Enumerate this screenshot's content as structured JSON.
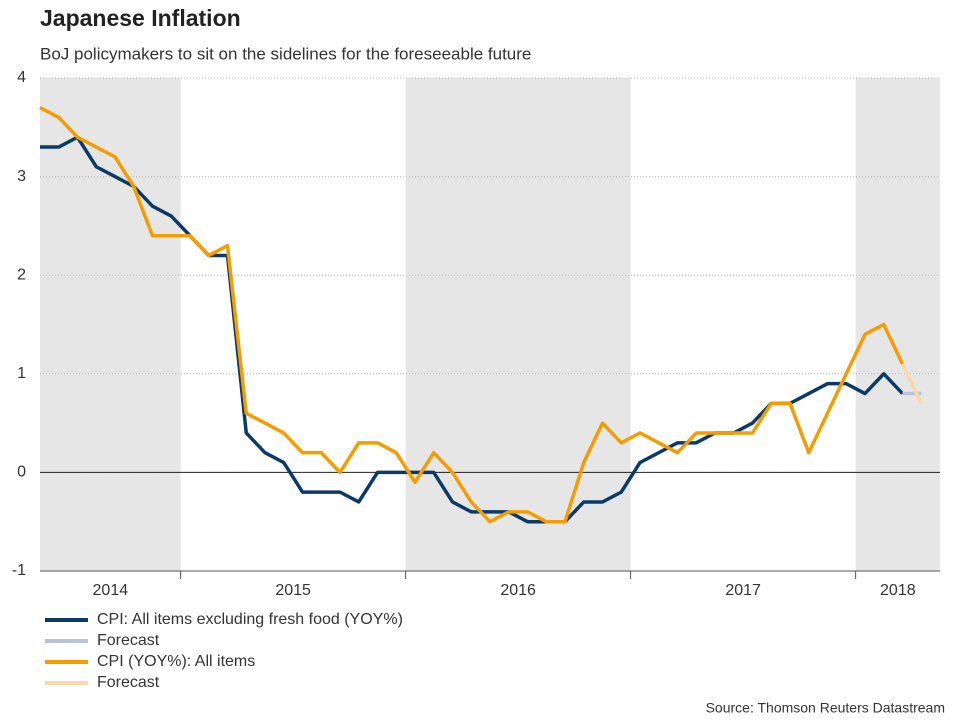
{
  "chart_data": {
    "type": "line",
    "title": "Japanese Inflation",
    "subtitle": "BoJ policymakers to sit on the sidelines for the foreseeable future",
    "source": "Source: Thomson Reuters Datastream",
    "categories": [
      "2014",
      null,
      null,
      null,
      null,
      null,
      null,
      null,
      "2015",
      null,
      null,
      null,
      null,
      null,
      null,
      null,
      null,
      null,
      null,
      null,
      "2016",
      null,
      null,
      null,
      null,
      null,
      null,
      null,
      null,
      null,
      null,
      null,
      "2017",
      null,
      null,
      null,
      null,
      null,
      null,
      null,
      null,
      null,
      null,
      null,
      "2018",
      null,
      null,
      null
    ],
    "series": [
      {
        "name": "CPI: All items excluding fresh food (YOY%)",
        "color": "#0b3a66",
        "values": [
          3.3,
          3.3,
          3.4,
          3.1,
          3.0,
          2.9,
          2.7,
          2.6,
          2.4,
          2.2,
          2.2,
          0.4,
          0.2,
          0.1,
          -0.2,
          -0.2,
          -0.2,
          -0.3,
          0.0,
          0.0,
          0.0,
          0.0,
          -0.3,
          -0.4,
          -0.4,
          -0.4,
          -0.5,
          -0.5,
          -0.5,
          -0.3,
          -0.3,
          -0.2,
          0.1,
          0.2,
          0.3,
          0.3,
          0.4,
          0.4,
          0.5,
          0.7,
          0.7,
          0.8,
          0.9,
          0.9,
          0.8,
          1.0,
          0.8,
          null
        ]
      },
      {
        "name": "Forecast",
        "color": "#b8c4d6",
        "values": [
          null,
          null,
          null,
          null,
          null,
          null,
          null,
          null,
          null,
          null,
          null,
          null,
          null,
          null,
          null,
          null,
          null,
          null,
          null,
          null,
          null,
          null,
          null,
          null,
          null,
          null,
          null,
          null,
          null,
          null,
          null,
          null,
          null,
          null,
          null,
          null,
          null,
          null,
          null,
          null,
          null,
          null,
          null,
          null,
          null,
          null,
          0.8,
          0.8
        ]
      },
      {
        "name": "CPI (YOY%): All items",
        "color": "#f59c00",
        "values": [
          3.7,
          3.6,
          3.4,
          3.3,
          3.2,
          2.9,
          2.4,
          2.4,
          2.4,
          2.2,
          2.3,
          0.6,
          0.5,
          0.4,
          0.2,
          0.2,
          0.0,
          0.3,
          0.3,
          0.2,
          -0.1,
          0.2,
          0.0,
          -0.3,
          -0.5,
          -0.4,
          -0.4,
          -0.5,
          -0.5,
          0.1,
          0.5,
          0.3,
          0.4,
          0.3,
          0.2,
          0.4,
          0.4,
          0.4,
          0.4,
          0.7,
          0.7,
          0.2,
          0.6,
          1.0,
          1.4,
          1.5,
          1.1,
          null
        ]
      },
      {
        "name": "Forecast",
        "color": "#fad9a8",
        "values": [
          null,
          null,
          null,
          null,
          null,
          null,
          null,
          null,
          null,
          null,
          null,
          null,
          null,
          null,
          null,
          null,
          null,
          null,
          null,
          null,
          null,
          null,
          null,
          null,
          null,
          null,
          null,
          null,
          null,
          null,
          null,
          null,
          null,
          null,
          null,
          null,
          null,
          null,
          null,
          null,
          null,
          null,
          null,
          null,
          null,
          null,
          1.1,
          0.7
        ]
      }
    ],
    "ylim": [
      -1,
      4
    ],
    "yticks": [
      -1,
      0,
      1,
      2,
      3,
      4
    ],
    "grid": true
  }
}
